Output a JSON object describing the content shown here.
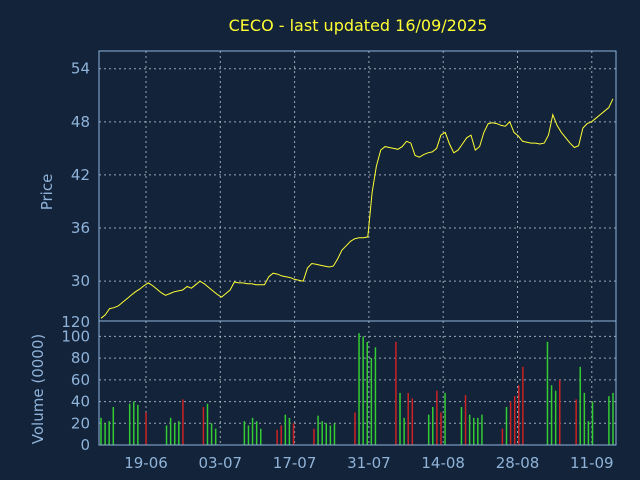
{
  "chart_data": [
    {
      "type": "line",
      "title": "CECO - last updated 16/09/2025",
      "ylabel": "Price",
      "ylim": [
        25.5,
        56
      ],
      "yticks": [
        30,
        36,
        42,
        48,
        54
      ],
      "xticks": [
        "19-06",
        "03-07",
        "17-07",
        "31-07",
        "14-08",
        "28-08",
        "11-09"
      ],
      "grid": true,
      "line_color": "#ffff33",
      "series": [
        {
          "values": [
            25.8,
            26.2,
            26.9,
            27.0,
            27.2,
            27.6,
            28.0,
            28.4,
            28.8,
            29.1,
            29.5,
            29.8,
            29.5,
            29.1,
            28.7,
            28.4,
            28.6,
            28.8,
            28.9,
            29.0,
            29.4,
            29.2,
            29.6,
            30.0,
            29.7,
            29.3,
            28.9,
            28.5,
            28.2,
            28.6,
            29.0,
            29.9,
            29.8,
            29.8,
            29.7,
            29.7,
            29.6,
            29.6,
            29.6,
            30.5,
            30.9,
            30.8,
            30.6,
            30.5,
            30.4,
            30.2,
            30.1,
            30.0,
            31.5,
            32.0,
            31.9,
            31.8,
            31.7,
            31.6,
            31.7,
            32.5,
            33.5,
            34.0,
            34.5,
            34.8,
            34.9,
            34.9,
            35.0,
            40.0,
            43.0,
            44.8,
            45.2,
            45.1,
            45.0,
            44.9,
            45.2,
            45.8,
            45.6,
            44.2,
            44.0,
            44.3,
            44.5,
            44.6,
            45.0,
            46.5,
            46.8,
            45.5,
            44.5,
            44.8,
            45.5,
            46.2,
            46.5,
            44.8,
            45.2,
            46.8,
            47.8,
            47.9,
            47.8,
            47.6,
            47.5,
            48.0,
            46.8,
            46.4,
            45.8,
            45.7,
            45.6,
            45.6,
            45.5,
            45.6,
            46.5,
            48.8,
            47.6,
            46.8,
            46.2,
            45.6,
            45.1,
            45.3,
            47.3,
            47.8,
            48.0,
            48.4,
            48.8,
            49.2,
            49.6,
            50.6
          ]
        }
      ]
    },
    {
      "type": "bar",
      "ylabel": "Volume (0000)",
      "ylim": [
        0,
        105
      ],
      "yticks": [
        0,
        20,
        40,
        60,
        80,
        100
      ],
      "extra_tick_label": "120",
      "up_color": "#33cc33",
      "down_color": "#cc2222",
      "values": [
        25,
        20,
        22,
        35,
        0,
        0,
        0,
        38,
        40,
        37,
        0,
        30,
        0,
        0,
        0,
        0,
        18,
        25,
        20,
        22,
        42,
        0,
        0,
        0,
        0,
        35,
        38,
        20,
        15,
        0,
        0,
        0,
        0,
        0,
        0,
        22,
        18,
        25,
        22,
        15,
        0,
        0,
        0,
        14,
        18,
        28,
        25,
        20,
        0,
        0,
        0,
        0,
        15,
        27,
        22,
        20,
        18,
        20,
        0,
        0,
        0,
        0,
        30,
        103,
        100,
        95,
        80,
        90,
        0,
        0,
        0,
        0,
        95,
        48,
        25,
        48,
        43,
        0,
        0,
        0,
        28,
        35,
        50,
        30,
        48,
        0,
        0,
        0,
        35,
        46,
        28,
        25,
        25,
        28,
        0,
        0,
        0,
        0,
        15,
        35,
        40,
        45,
        55,
        72,
        0,
        0,
        0,
        0,
        0,
        95,
        55,
        50,
        60,
        0,
        0,
        0,
        42,
        72,
        48,
        22,
        40,
        0,
        0,
        0,
        45,
        48
      ],
      "directions": [
        "up",
        "up",
        "up",
        "up",
        "up",
        "up",
        "up",
        "up",
        "up",
        "up",
        "up",
        "down",
        "up",
        "up",
        "up",
        "up",
        "up",
        "up",
        "up",
        "up",
        "down",
        "up",
        "up",
        "up",
        "up",
        "down",
        "up",
        "up",
        "up",
        "up",
        "up",
        "up",
        "up",
        "up",
        "up",
        "up",
        "up",
        "up",
        "up",
        "up",
        "up",
        "up",
        "up",
        "down",
        "down",
        "up",
        "up",
        "down",
        "up",
        "up",
        "up",
        "up",
        "down",
        "up",
        "up",
        "up",
        "up",
        "up",
        "up",
        "up",
        "up",
        "up",
        "down",
        "up",
        "up",
        "up",
        "up",
        "up",
        "up",
        "up",
        "up",
        "up",
        "down",
        "up",
        "up",
        "down",
        "down",
        "up",
        "up",
        "up",
        "up",
        "up",
        "down",
        "down",
        "up",
        "up",
        "up",
        "up",
        "up",
        "down",
        "up",
        "up",
        "up",
        "up",
        "up",
        "up",
        "up",
        "up",
        "down",
        "up",
        "down",
        "down",
        "down",
        "down",
        "up",
        "up",
        "up",
        "up",
        "up",
        "up",
        "up",
        "up",
        "down",
        "up",
        "up",
        "up",
        "down",
        "up",
        "up",
        "up",
        "up",
        "up",
        "up",
        "up",
        "up",
        "up"
      ]
    }
  ]
}
